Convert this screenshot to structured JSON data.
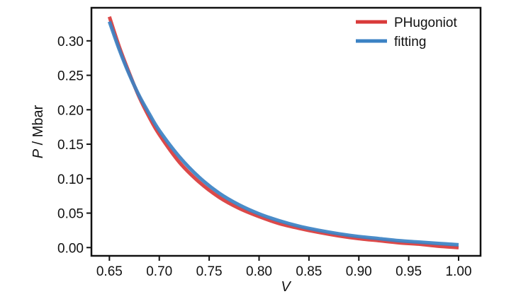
{
  "chart_data": {
    "type": "line",
    "title": "",
    "xlabel": "V",
    "ylabel_italic": "P",
    "ylabel_rest": " / Mbar",
    "xlim": [
      0.632,
      1.022
    ],
    "ylim": [
      -0.012,
      0.348
    ],
    "xticks": [
      0.65,
      0.7,
      0.75,
      0.8,
      0.85,
      0.9,
      0.95,
      1.0
    ],
    "xtick_labels": [
      "0.65",
      "0.70",
      "0.75",
      "0.80",
      "0.85",
      "0.90",
      "0.95",
      "1.00"
    ],
    "yticks": [
      0.0,
      0.05,
      0.1,
      0.15,
      0.2,
      0.25,
      0.3
    ],
    "ytick_labels": [
      "0.00",
      "0.05",
      "0.10",
      "0.15",
      "0.20",
      "0.25",
      "0.30"
    ],
    "grid": false,
    "legend_position": "top-right",
    "series": [
      {
        "name": "PHugoniot",
        "color": "#d93a3a",
        "x": [
          0.65,
          0.66,
          0.67,
          0.68,
          0.69,
          0.7,
          0.72,
          0.74,
          0.76,
          0.78,
          0.8,
          0.82,
          0.84,
          0.86,
          0.88,
          0.9,
          0.92,
          0.94,
          0.96,
          0.98,
          1.0
        ],
        "y": [
          0.335,
          0.291,
          0.253,
          0.218,
          0.189,
          0.164,
          0.124,
          0.095,
          0.073,
          0.057,
          0.045,
          0.035,
          0.028,
          0.022,
          0.017,
          0.013,
          0.01,
          0.007,
          0.005,
          0.002,
          0.0
        ]
      },
      {
        "name": "fitting",
        "color": "#3b82c4",
        "x": [
          0.65,
          0.66,
          0.67,
          0.68,
          0.69,
          0.7,
          0.72,
          0.74,
          0.76,
          0.78,
          0.8,
          0.82,
          0.84,
          0.86,
          0.88,
          0.9,
          0.92,
          0.94,
          0.96,
          0.98,
          1.0
        ],
        "y": [
          0.328,
          0.287,
          0.251,
          0.22,
          0.194,
          0.17,
          0.132,
          0.102,
          0.079,
          0.062,
          0.049,
          0.039,
          0.031,
          0.025,
          0.02,
          0.016,
          0.013,
          0.01,
          0.008,
          0.006,
          0.004
        ]
      }
    ]
  }
}
